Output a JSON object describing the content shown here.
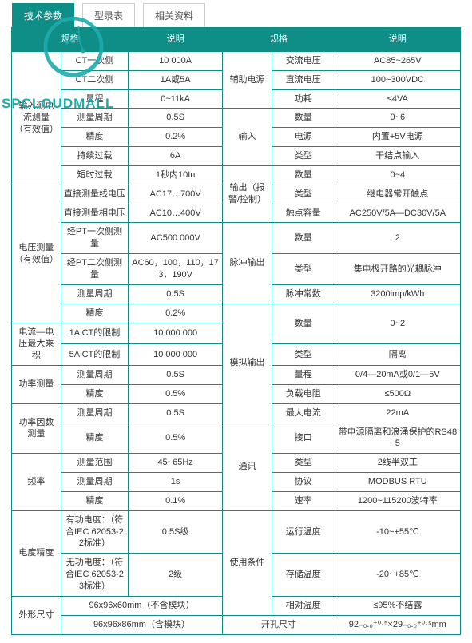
{
  "tabs": {
    "active": "技术参数",
    "items": [
      "技术参数",
      "型录表",
      "相关资料"
    ]
  },
  "watermark": "SPCLOUDMALL",
  "theme": {
    "header_bg": "#0e8e86",
    "header_fg": "#ffffff",
    "border": "#0e8e86",
    "logo_color": "#1eabac"
  },
  "headers": [
    "规格",
    "说明",
    "规格",
    "说明"
  ],
  "left_groups": [
    {
      "label": "输入测电流测量（有效值）",
      "rows": [
        [
          "CT一次侧",
          "10 000A"
        ],
        [
          "CT二次侧",
          "1A或5A"
        ],
        [
          "量程",
          "0~11kA"
        ],
        [
          "测量周期",
          "0.5S"
        ],
        [
          "精度",
          "0.2%"
        ],
        [
          "持续过载",
          "6A"
        ],
        [
          "短时过载",
          "1秒内10In"
        ]
      ]
    },
    {
      "label": "电压测量（有效值）",
      "rows": [
        [
          "直接测量线电压",
          "AC17…700V"
        ],
        [
          "直接测量相电压",
          "AC10…400V"
        ],
        [
          "经PT一次侧测量",
          "AC500 000V"
        ],
        [
          "经PT二次侧测量",
          "AC60，100，110，173，190V"
        ],
        [
          "测量周期",
          "0.5S"
        ],
        [
          "精度",
          "0.2%"
        ]
      ]
    },
    {
      "label": "电流—电压最大乘积",
      "rows": [
        [
          "1A CT的限制",
          "10 000 000"
        ],
        [
          "5A CT的限制",
          "10 000 000"
        ]
      ]
    },
    {
      "label": "功率测量",
      "rows": [
        [
          "测量周期",
          "0.5S"
        ],
        [
          "精度",
          "0.5%"
        ]
      ]
    },
    {
      "label": "功率因数测量",
      "rows": [
        [
          "测量周期",
          "0.5S"
        ],
        [
          "精度",
          "0.5%"
        ]
      ]
    },
    {
      "label": "频率",
      "rows": [
        [
          "测量范围",
          "45~65Hz"
        ],
        [
          "测量周期",
          "1s"
        ],
        [
          "精度",
          "0.1%"
        ]
      ]
    },
    {
      "label": "电度精度",
      "rows": [
        [
          "有功电度：（符合IEC 62053-22标准）",
          "0.5S级"
        ],
        [
          "无功电度：（符合IEC 62053-23标准）",
          "2级"
        ]
      ]
    },
    {
      "label": "外形尺寸",
      "rows": [
        [
          "",
          "96x96x60mm（不含模块）"
        ],
        [
          "",
          "96x96x86mm（含模块）"
        ]
      ]
    }
  ],
  "right_groups": [
    {
      "label": "辅助电源",
      "rows": [
        [
          "交流电压",
          "AC85~265V"
        ],
        [
          "直流电压",
          "100~300VDC"
        ],
        [
          "功耗",
          "≤4VA"
        ]
      ]
    },
    {
      "label": "输入",
      "rows": [
        [
          "数量",
          "0~6"
        ],
        [
          "电源",
          "内置+5V电源"
        ],
        [
          "类型",
          "干结点输入"
        ]
      ]
    },
    {
      "label": "输出（报警/控制）",
      "rows": [
        [
          "数量",
          "0~4"
        ],
        [
          "类型",
          "继电器常开触点"
        ],
        [
          "触点容量",
          "AC250V/5A—DC30V/5A"
        ]
      ]
    },
    {
      "label": "脉冲输出",
      "rows": [
        [
          "数量",
          "2"
        ],
        [
          "类型",
          "集电极开路的光耦脉冲"
        ],
        [
          "脉冲常数",
          "3200imp/kWh"
        ]
      ]
    },
    {
      "label": "模拟输出",
      "rows": [
        [
          "数量",
          "0~2"
        ],
        [
          "类型",
          "隔离"
        ],
        [
          "量程",
          "0/4—20mA或0/1—5V"
        ],
        [
          "负载电阻",
          "≤500Ω"
        ],
        [
          "最大电流",
          "22mA"
        ]
      ]
    },
    {
      "label": "通讯",
      "rows": [
        [
          "接口",
          "带电源隔离和浪涌保护的RS485"
        ],
        [
          "类型",
          "2线半双工"
        ],
        [
          "协议",
          "MODBUS RTU"
        ],
        [
          "速率",
          "1200~115200波特率"
        ]
      ]
    },
    {
      "label": "使用条件",
      "rows": [
        [
          "运行温度",
          "-10~+55℃"
        ],
        [
          "存储温度",
          "-20~+85℃"
        ],
        [
          "相对湿度",
          "≤95%不结露"
        ]
      ]
    },
    {
      "label": "开孔尺寸",
      "span": 2,
      "rows": [
        [
          "",
          "92₋₀.₀⁺⁰·⁵×29₋₀.₀⁺⁰·⁵mm"
        ]
      ]
    }
  ]
}
